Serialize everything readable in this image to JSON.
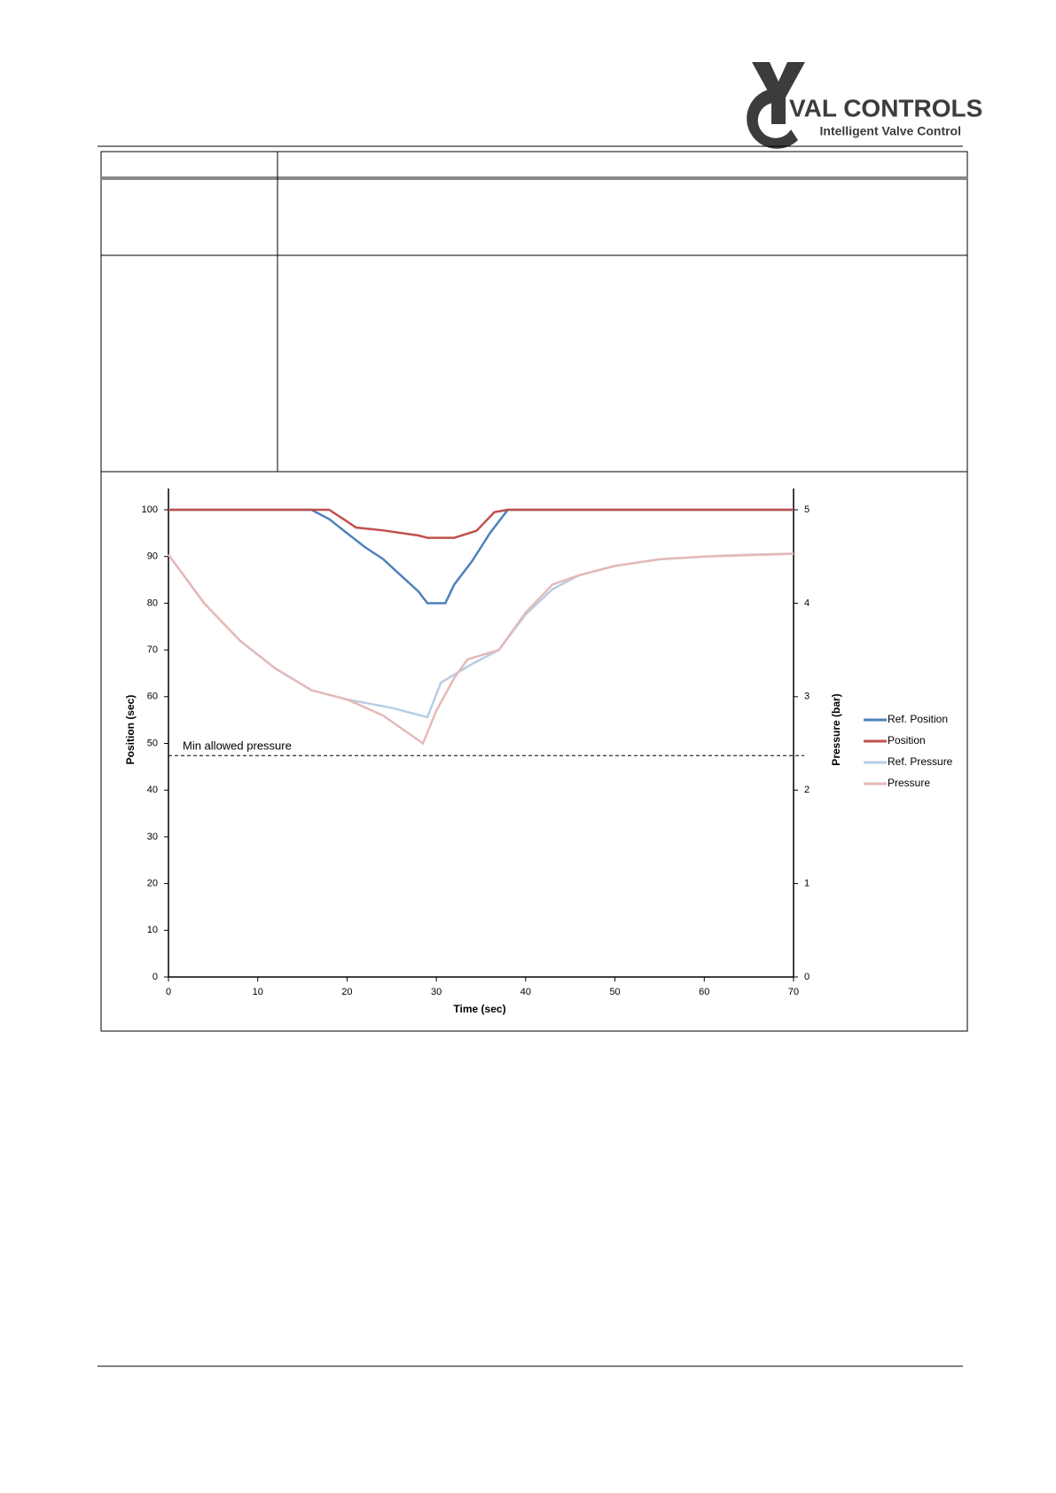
{
  "header": {
    "brand": "VAL CONTROLS",
    "tagline": "Intelligent Valve Control"
  },
  "chart_data": {
    "type": "line",
    "xlabel": "Time (sec)",
    "ylabel": "Position (sec)",
    "y2label": "Pressure (bar)",
    "xlim": [
      0,
      70
    ],
    "xticks": [
      0,
      10,
      20,
      30,
      40,
      50,
      60,
      70
    ],
    "ylim": [
      0,
      100
    ],
    "yticks": [
      0,
      10,
      20,
      30,
      40,
      50,
      60,
      70,
      80,
      90,
      100
    ],
    "y2lim": [
      0,
      5
    ],
    "y2ticks": [
      0,
      1,
      2,
      3,
      4,
      5
    ],
    "legend": "right",
    "annotation": {
      "label": "Min allowed pressure",
      "value": 2.37,
      "axis": "y2"
    },
    "series": [
      {
        "name": "Ref. Position",
        "color": "#4f81bd",
        "x": [
          0,
          16,
          18,
          20,
          22,
          24,
          26,
          28,
          29,
          31,
          32,
          34,
          36,
          38,
          70
        ],
        "values": [
          100,
          100,
          98,
          95,
          92,
          89.5,
          86,
          82.5,
          80,
          80,
          84,
          89,
          95,
          100,
          100
        ]
      },
      {
        "name": "Position",
        "color": "#c0504d",
        "x": [
          0,
          18,
          20,
          21,
          24,
          28,
          29,
          32,
          34.5,
          36.5,
          38,
          70
        ],
        "values": [
          100,
          100,
          97.5,
          96.2,
          95.6,
          94.5,
          94,
          94,
          95.5,
          99.5,
          100,
          100
        ]
      },
      {
        "name": "Ref. Pressure",
        "color": "#b9cde5",
        "axis": "y2",
        "x": [
          0,
          4,
          8,
          12,
          16,
          20,
          25,
          29,
          30.5,
          34,
          37,
          40,
          43,
          46,
          50,
          55,
          60,
          65,
          70
        ],
        "values": [
          4.52,
          4.0,
          3.6,
          3.3,
          3.07,
          2.97,
          2.88,
          2.78,
          3.15,
          3.35,
          3.5,
          3.88,
          4.15,
          4.3,
          4.4,
          4.47,
          4.5,
          4.52,
          4.53
        ]
      },
      {
        "name": "Pressure",
        "color": "#e6b9b8",
        "axis": "y2",
        "x": [
          0,
          4,
          8,
          12,
          16,
          20,
          24,
          28.5,
          30,
          32,
          33.5,
          37,
          40,
          43,
          46,
          50,
          55,
          60,
          70
        ],
        "values": [
          4.52,
          4.0,
          3.6,
          3.3,
          3.07,
          2.97,
          2.8,
          2.5,
          2.85,
          3.2,
          3.4,
          3.5,
          3.9,
          4.2,
          4.3,
          4.4,
          4.47,
          4.5,
          4.53
        ]
      }
    ]
  }
}
